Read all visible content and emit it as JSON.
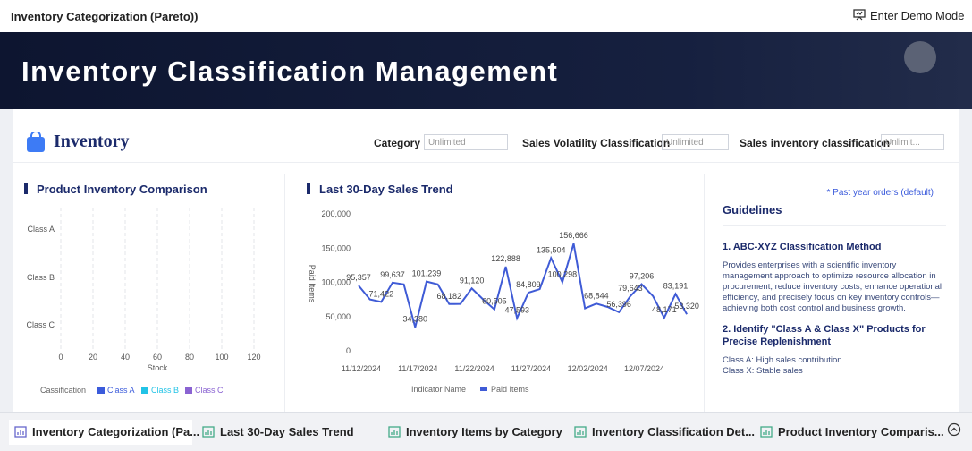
{
  "header": {
    "title": "Inventory Categorization (Pareto))",
    "demo_button": "Enter Demo Mode"
  },
  "banner": {
    "title": "Inventory Classification Management"
  },
  "toolbar": {
    "title": "Inventory",
    "filters": [
      {
        "label": "Category",
        "value": "Unlimited"
      },
      {
        "label": "Sales Volatility Classification",
        "value": "Unlimited"
      },
      {
        "label": "Sales inventory classification",
        "value": "Unlimit..."
      }
    ]
  },
  "inventory_chart": {
    "type": "bar",
    "title": "Product Inventory Comparison",
    "categories": [
      "Class A",
      "Class B",
      "Class C"
    ],
    "x_label": "Stock",
    "xlim": [
      0,
      120
    ],
    "xticks": [
      0,
      20,
      40,
      60,
      80,
      100,
      120
    ],
    "grid": true,
    "legend_title": "Cassification",
    "series": [
      {
        "name": "Class A",
        "color": "#3b5bdb"
      },
      {
        "name": "Class B",
        "color": "#22c3e6"
      },
      {
        "name": "Class C",
        "color": "#8a63d2"
      }
    ]
  },
  "sales_chart": {
    "type": "line",
    "title": "Last 30-Day Sales Trend",
    "y_label": "Paid Items",
    "legend_title": "Indicator Name",
    "x": [
      "11/12/2024",
      null,
      null,
      null,
      null,
      "11/17/2024",
      null,
      null,
      null,
      null,
      "11/22/2024",
      null,
      null,
      null,
      null,
      "11/27/2024",
      null,
      null,
      null,
      null,
      "12/02/2024",
      null,
      null,
      null,
      null,
      "12/07/2024",
      null,
      null,
      null,
      null
    ],
    "ylim": [
      0,
      200000
    ],
    "yticks": [
      0,
      {
        "value": 50000,
        "label": "50,000"
      },
      {
        "value": 100000,
        "label": "100,000"
      },
      {
        "value": 150000,
        "label": "150,000"
      },
      {
        "value": 200000,
        "label": "200,000"
      }
    ],
    "series": [
      {
        "name": "Paid Items",
        "color": "#3f5bd6",
        "values": [
          95357,
          75000,
          71422,
          99637,
          97000,
          34380,
          101239,
          97000,
          68182,
          68500,
          91120,
          75000,
          60505,
          122888,
          47593,
          84809,
          90000,
          135504,
          100298,
          156666,
          62000,
          68844,
          64000,
          56396,
          79643,
          97206,
          80000,
          48171,
          83191,
          53320
        ],
        "value_labels": [
          "95,357",
          null,
          "71,422",
          "99,637",
          null,
          "34,380",
          "101,239",
          null,
          "68,182",
          null,
          "91,120",
          null,
          "60,505",
          "122,888",
          "47,593",
          "84,809",
          null,
          "135,504",
          "100,298",
          "156,666",
          null,
          "68,844",
          null,
          "56,396",
          "79,643",
          "97,206",
          null,
          "48,171",
          "83,191",
          "53,320"
        ]
      }
    ]
  },
  "guidelines": {
    "note": "* Past year orders (default)",
    "title": "Guidelines",
    "sections": [
      {
        "heading": "1. ABC-XYZ Classification Method",
        "body": [
          "Provides enterprises with a scientific inventory management approach to optimize resource allocation in procurement, reduce inventory costs, enhance operational efficiency, and precisely focus on key inventory controls—achieving both cost control and business growth."
        ]
      },
      {
        "heading": "2. Identify \"Class A & Class X\" Products for Precise Replenishment",
        "body": [
          "Class A: High sales contribution",
          "Class X: Stable sales"
        ]
      }
    ]
  },
  "tabs": [
    "Inventory Categorization (Pa...",
    "Last 30-Day Sales Trend",
    "Inventory Items by Category",
    "Inventory Classification Det...",
    "Product Inventory Comparis..."
  ]
}
